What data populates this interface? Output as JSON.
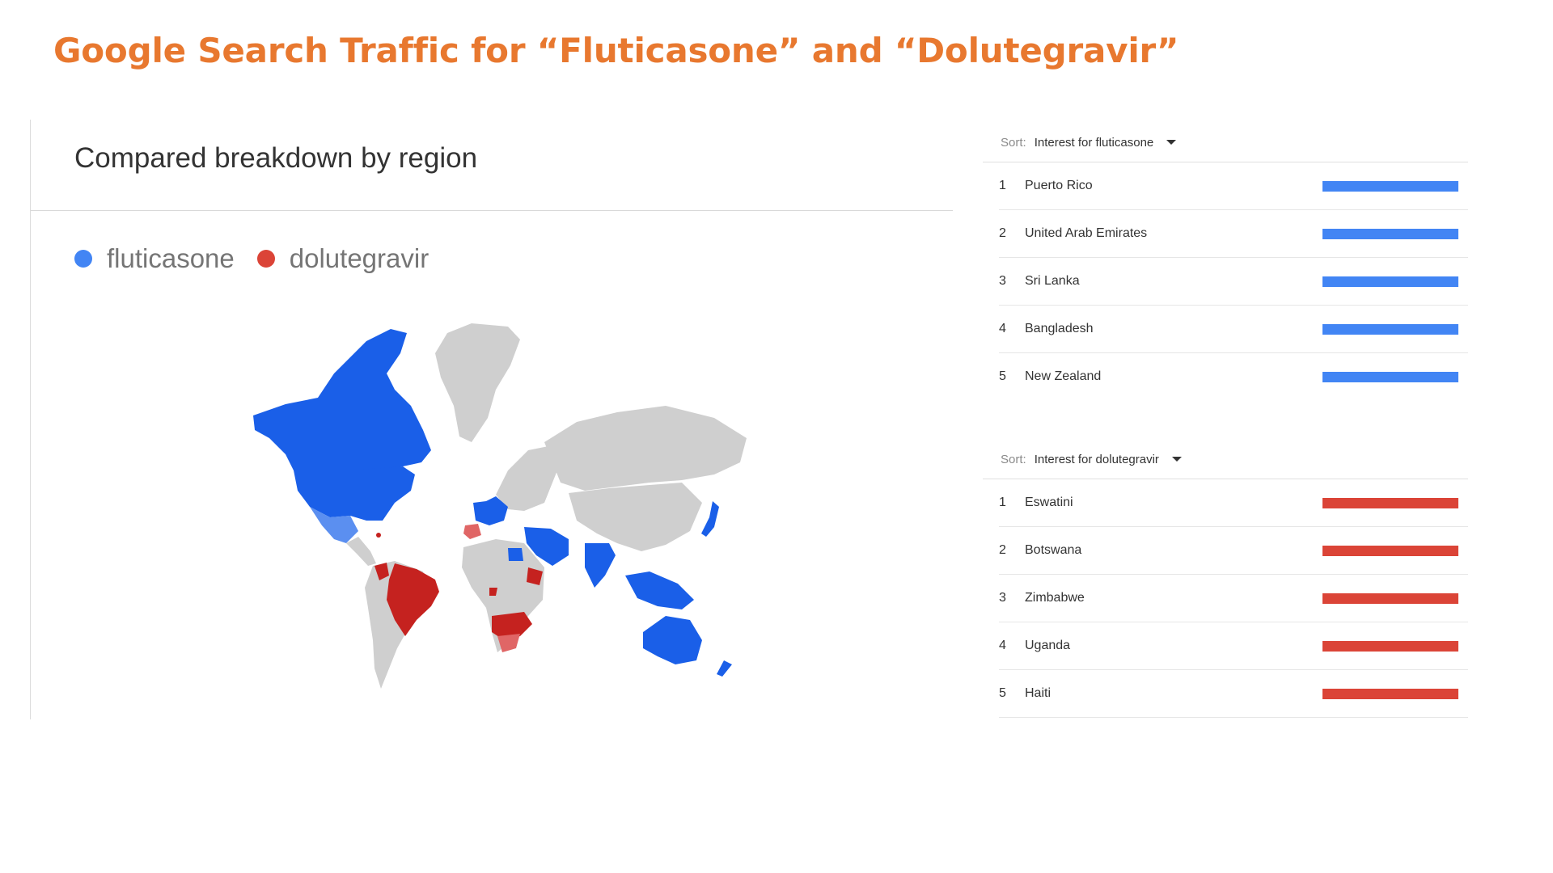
{
  "slide": {
    "title": "Google Search Traffic for “Fluticasone” and “Dolutegravir”",
    "title_color": "#e8782f"
  },
  "map_card": {
    "heading": "Compared breakdown by region",
    "legend": [
      {
        "label": "fluticasone",
        "color": "#4285f4"
      },
      {
        "label": "dolutegravir",
        "color": "#db4437"
      }
    ],
    "map_colors": {
      "fluticasone": "#1a5fe8",
      "dolutegravir": "#c5221f",
      "other": "#cfcfcf",
      "light_red": "#e06666",
      "light_blue": "#5b8ff0"
    }
  },
  "rankings": [
    {
      "sort_label": "Sort:",
      "sort_value": "Interest for fluticasone",
      "bar_color": "#4285f4",
      "rows": [
        {
          "rank": "1",
          "name": "Puerto Rico"
        },
        {
          "rank": "2",
          "name": "United Arab Emirates"
        },
        {
          "rank": "3",
          "name": "Sri Lanka"
        },
        {
          "rank": "4",
          "name": "Bangladesh"
        },
        {
          "rank": "5",
          "name": "New Zealand"
        }
      ]
    },
    {
      "sort_label": "Sort:",
      "sort_value": "Interest for dolutegravir",
      "bar_color": "#db4437",
      "rows": [
        {
          "rank": "1",
          "name": "Eswatini"
        },
        {
          "rank": "2",
          "name": "Botswana"
        },
        {
          "rank": "3",
          "name": "Zimbabwe"
        },
        {
          "rank": "4",
          "name": "Uganda"
        },
        {
          "rank": "5",
          "name": "Haiti"
        }
      ]
    }
  ]
}
